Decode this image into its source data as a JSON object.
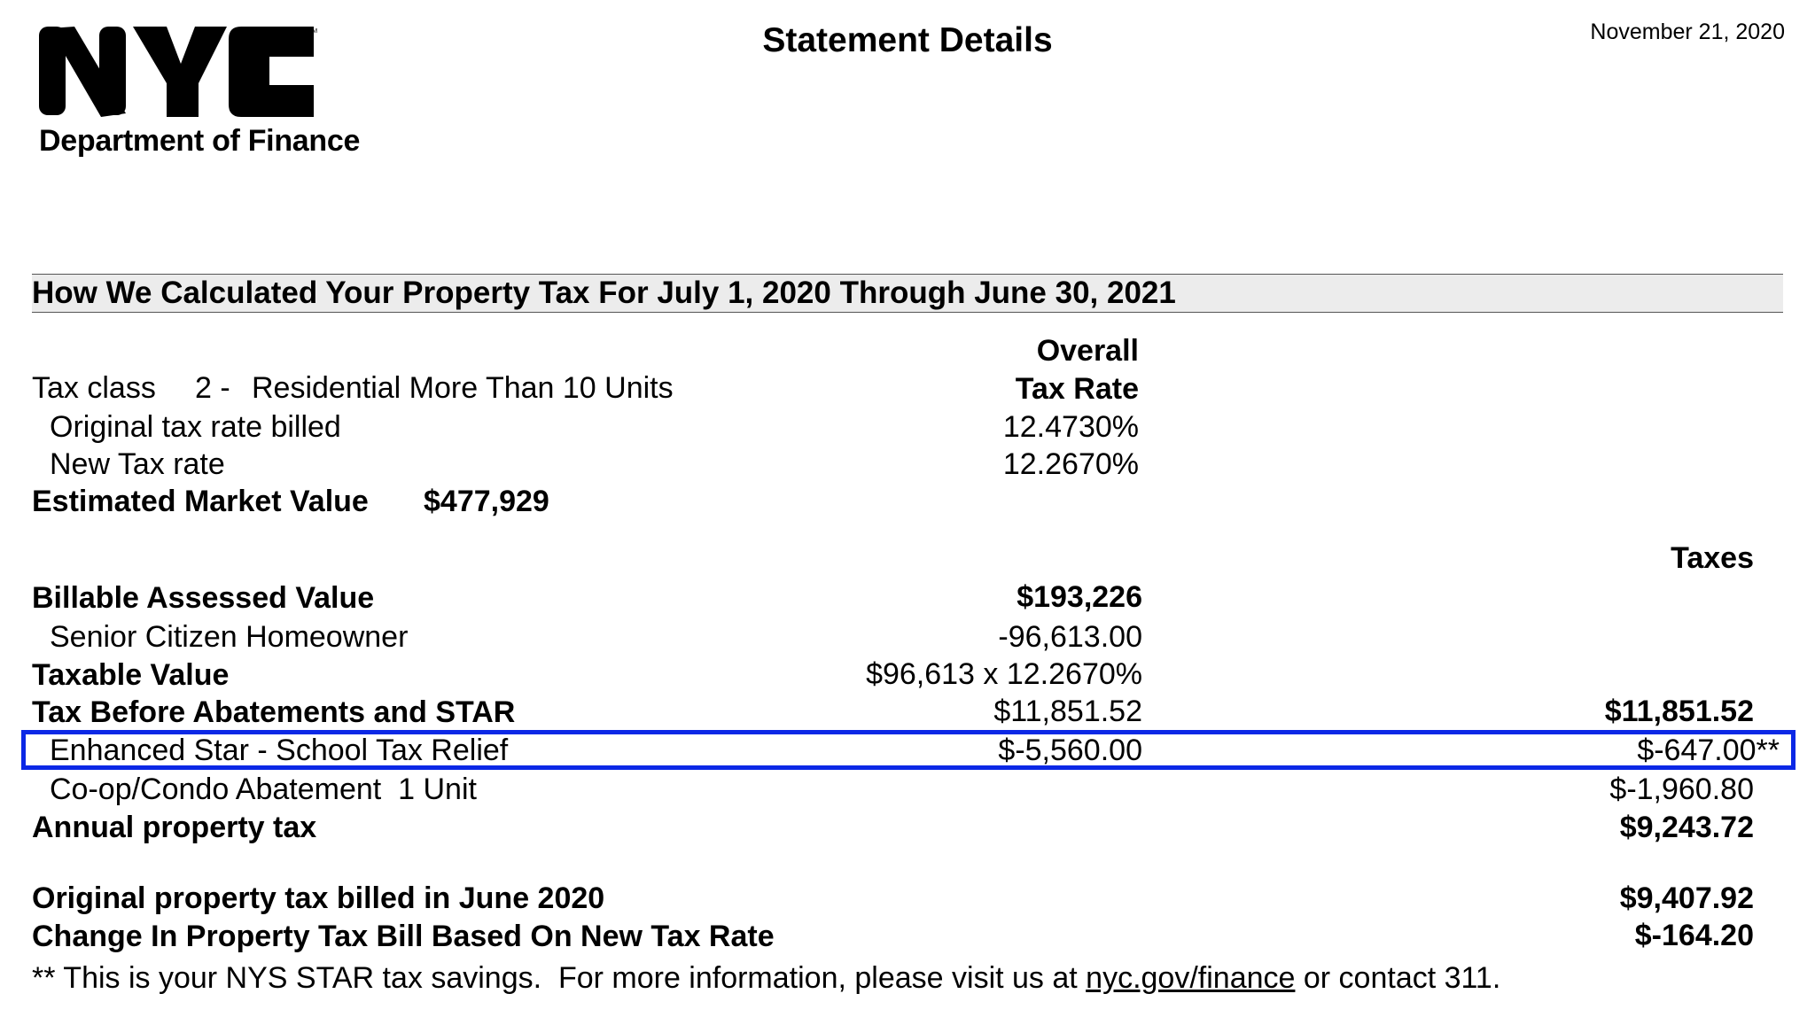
{
  "header": {
    "logo_text": "NYC",
    "department": "Department of Finance",
    "title": "Statement Details",
    "date": "November 21, 2020"
  },
  "section_title": "How We Calculated Your Property Tax For July 1, 2020 Through June 30, 2021",
  "rate_header": {
    "line1": "Overall",
    "line2": "Tax Rate"
  },
  "tax_class": {
    "label": "Tax class",
    "code": "2 -",
    "description": "Residential More Than 10 Units"
  },
  "rates": [
    {
      "label": "Original tax rate billed",
      "value": "12.4730%"
    },
    {
      "label": "New Tax rate",
      "value": "12.2670%"
    }
  ],
  "market_value": {
    "label": "Estimated Market Value",
    "value": "$477,929"
  },
  "taxes_header": "Taxes",
  "rows": [
    {
      "label": "Billable Assessed Value",
      "rate_col": "$193,226",
      "taxes_col": ""
    },
    {
      "label": "Senior Citizen Homeowner",
      "rate_col": "-96,613.00",
      "taxes_col": ""
    },
    {
      "label": "Taxable Value",
      "rate_col": "$96,613 x 12.2670%",
      "taxes_col": ""
    },
    {
      "label": "Tax Before Abatements and STAR",
      "rate_col": "$11,851.52",
      "taxes_col": "$11,851.52"
    },
    {
      "label": "Enhanced Star - School Tax Relief",
      "rate_col": "$-5,560.00",
      "taxes_col": "$-647.00**"
    },
    {
      "label": "Co-op/Condo Abatement  1 Unit",
      "rate_col": "",
      "taxes_col": "$-1,960.80"
    },
    {
      "label": "Annual property tax",
      "rate_col": "",
      "taxes_col": "$9,243.72"
    }
  ],
  "summary": [
    {
      "label": "Original property tax billed in June 2020",
      "value": "$9,407.92"
    },
    {
      "label": "Change In Property Tax Bill Based On New Tax Rate",
      "value": "$-164.20"
    }
  ],
  "footnote": {
    "prefix": "** This is your NYS STAR tax savings.  For more information, please visit us at ",
    "link": "nyc.gov/finance",
    "suffix": " or contact 311."
  },
  "colors": {
    "highlight": "#0b28e6",
    "band": "#ececec"
  }
}
